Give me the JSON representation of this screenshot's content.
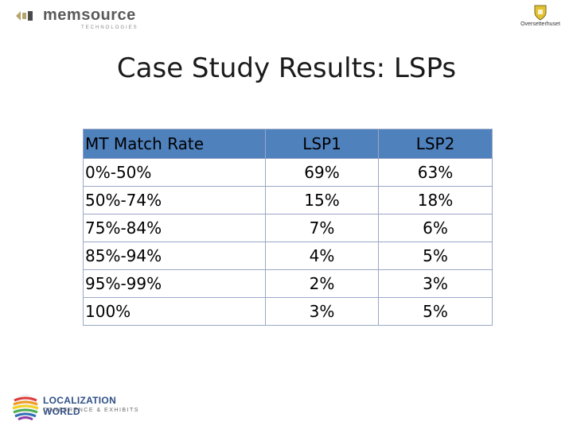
{
  "header": {
    "left_logo_text": "memsource",
    "left_logo_subtext": "TECHNOLOGIES",
    "right_logo_text": "Oversetterhuset"
  },
  "slide": {
    "title": "Case Study Results: LSPs"
  },
  "table": {
    "headers": [
      "MT Match Rate",
      "LSP1",
      "LSP2"
    ],
    "rows": [
      [
        "0%-50%",
        "69%",
        "63%"
      ],
      [
        "50%-74%",
        "15%",
        "18%"
      ],
      [
        "75%-84%",
        "7%",
        "6%"
      ],
      [
        "85%-94%",
        "4%",
        "5%"
      ],
      [
        "95%-99%",
        "2%",
        "3%"
      ],
      [
        "100%",
        "3%",
        "5%"
      ]
    ],
    "header_color": "#4f81bd"
  },
  "footer": {
    "logo_line1": "LOCALIZATION WORLD",
    "logo_line2": "CONFERENCE & EXHIBITS"
  }
}
